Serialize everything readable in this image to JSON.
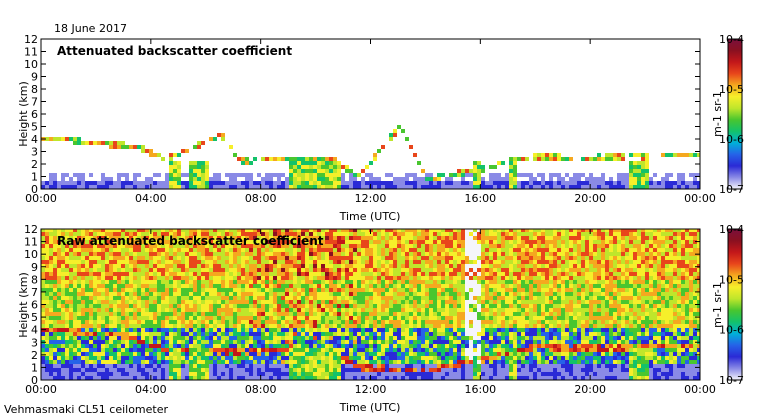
{
  "date_label": "18 June 2017",
  "footer_label": "Vehmasmaki CL51 ceilometer",
  "colors": {
    "scale": [
      "#f5f5fb",
      "#8a8ae6",
      "#2a2ad6",
      "#2563e8",
      "#00b0d8",
      "#13c26a",
      "#49c62f",
      "#bfe62b",
      "#f6ef2a",
      "#f5a81f",
      "#e8461b",
      "#c3171a",
      "#8a1020",
      "#7a0f3c"
    ],
    "mark": "#1a1a1a"
  },
  "chart_data": [
    {
      "type": "heatmap",
      "title": "Attenuated backscatter coefficient",
      "xlabel": "Time (UTC)",
      "ylabel": "Height (km)",
      "x_ticks": [
        "00:00",
        "04:00",
        "08:00",
        "12:00",
        "16:00",
        "20:00",
        "00:00"
      ],
      "y_ticks": [
        "0",
        "1",
        "2",
        "3",
        "4",
        "5",
        "6",
        "7",
        "8",
        "9",
        "10",
        "11",
        "12"
      ],
      "xlim_hours": [
        0,
        24
      ],
      "ylim_km": [
        0,
        12
      ],
      "colorbar": {
        "labels": [
          "10-7",
          "10-6",
          "10-5",
          "10-4"
        ],
        "unit": "m-1 sr-1",
        "scale": "log"
      },
      "cloud_base_km": [
        [
          0,
          4.0
        ],
        [
          1,
          3.9
        ],
        [
          2,
          3.6
        ],
        [
          3,
          3.5
        ],
        [
          3.5,
          3.3
        ],
        [
          4.5,
          2.4
        ],
        [
          6.5,
          4.3
        ],
        [
          7.2,
          2.2
        ],
        [
          8.5,
          2.4
        ],
        [
          10.5,
          2.4
        ],
        [
          11.5,
          1.0
        ],
        [
          13,
          5.0
        ],
        [
          14,
          0.8
        ],
        [
          16,
          1.6
        ],
        [
          17,
          2.2
        ],
        [
          18,
          2.6
        ],
        [
          19,
          2.5
        ],
        [
          20,
          2.5
        ],
        [
          21,
          2.6
        ],
        [
          22,
          2.6
        ],
        [
          23,
          2.7
        ]
      ],
      "precip_segments_hours": [
        [
          4.6,
          5.0
        ],
        [
          5.3,
          6.0
        ],
        [
          8.9,
          10.8
        ],
        [
          15.7,
          16.0
        ],
        [
          17.0,
          17.3
        ],
        [
          21.3,
          22.0
        ]
      ]
    },
    {
      "type": "heatmap",
      "title": "Raw attenuated backscatter coefficient",
      "xlabel": "Time (UTC)",
      "ylabel": "Height (km)",
      "x_ticks": [
        "00:00",
        "04:00",
        "08:00",
        "12:00",
        "16:00",
        "20:00",
        "00:00"
      ],
      "y_ticks": [
        "0",
        "1",
        "2",
        "3",
        "4",
        "5",
        "6",
        "7",
        "8",
        "9",
        "10",
        "11",
        "12"
      ],
      "xlim_hours": [
        0,
        24
      ],
      "ylim_km": [
        0,
        12
      ],
      "colorbar": {
        "labels": [
          "10-7",
          "10-6",
          "10-5",
          "10-4"
        ],
        "unit": "m-1 sr-1",
        "scale": "log"
      },
      "cloud_base_km": [
        [
          0,
          4.0
        ],
        [
          1,
          3.9
        ],
        [
          2,
          3.6
        ],
        [
          3,
          3.5
        ],
        [
          4.5,
          2.4
        ],
        [
          7.2,
          2.2
        ],
        [
          8.5,
          2.4
        ],
        [
          10.5,
          2.4
        ],
        [
          11.5,
          1.0
        ],
        [
          14,
          0.8
        ],
        [
          16,
          1.6
        ],
        [
          17,
          2.2
        ],
        [
          18,
          2.6
        ],
        [
          20,
          2.5
        ],
        [
          22,
          2.6
        ],
        [
          23,
          2.7
        ]
      ],
      "precip_segments_hours": [
        [
          4.6,
          5.0
        ],
        [
          5.3,
          6.0
        ],
        [
          8.9,
          10.8
        ],
        [
          15.7,
          16.0
        ],
        [
          17.0,
          17.3
        ],
        [
          21.3,
          22.0
        ]
      ]
    }
  ]
}
